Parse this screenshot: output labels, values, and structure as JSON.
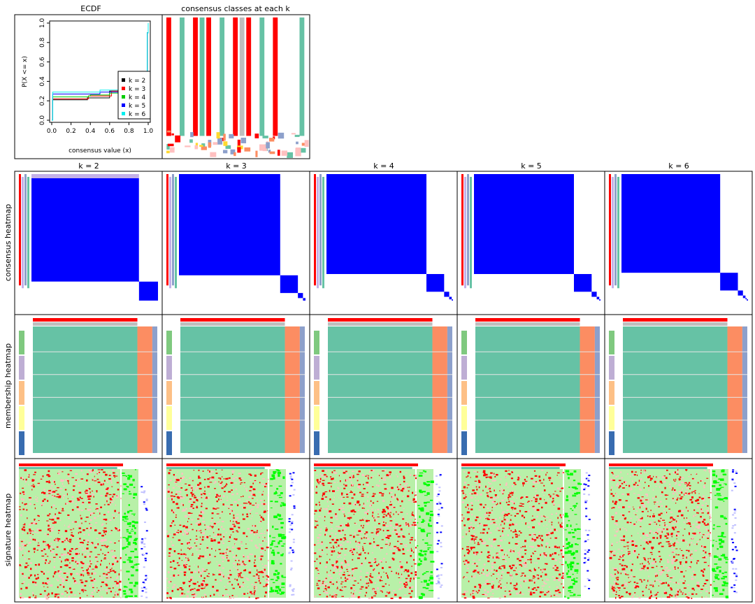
{
  "titles": {
    "ecdf": "ECDF",
    "classes": "consensus classes at each k",
    "k2": "k = 2",
    "k3": "k = 3",
    "k4": "k = 4",
    "k5": "k = 5",
    "k6": "k = 6"
  },
  "row_labels": {
    "consensus": "consensus heatmap",
    "membership": "membership heatmap",
    "signature": "signature heatmap"
  },
  "colors": {
    "blue": "#0000ff",
    "red": "#ff0000",
    "teal": "#66c2a5",
    "salmon": "#fc8d62",
    "grey": "#bebebe",
    "purple": "#8da0cb",
    "lavender": "#c3b0e8",
    "green": "#00ff00",
    "lightgreen": "#b8f0a8",
    "pink": "#ffc0c0",
    "anno_green": "#7fc97f",
    "anno_lavender": "#beaed4",
    "anno_orange": "#fdc086",
    "anno_yellow": "#ffff99",
    "anno_blue": "#386cb0"
  },
  "chart_data": [
    {
      "type": "line",
      "title": "ECDF",
      "xlabel": "consensus value (x)",
      "ylabel": "P(X <= x)",
      "xlim": [
        0,
        1
      ],
      "ylim": [
        0,
        1
      ],
      "x_ticks": [
        "0.0",
        "0.2",
        "0.4",
        "0.6",
        "0.8",
        "1.0"
      ],
      "y_ticks": [
        "0.0",
        "0.2",
        "0.4",
        "0.6",
        "0.8",
        "1.0"
      ],
      "legend_position": "bottom-right",
      "series": [
        {
          "name": "k = 2",
          "color": "#000000",
          "x": [
            0,
            0.01,
            0.35,
            0.37,
            0.58,
            0.6,
            0.98,
            0.99,
            1.0
          ],
          "y": [
            0,
            0.21,
            0.21,
            0.23,
            0.23,
            0.3,
            0.3,
            0.9,
            1.0
          ]
        },
        {
          "name": "k = 3",
          "color": "#ff0000",
          "x": [
            0,
            0.01,
            0.35,
            0.38,
            0.6,
            0.62,
            0.98,
            0.99,
            1.0
          ],
          "y": [
            0,
            0.22,
            0.22,
            0.25,
            0.25,
            0.3,
            0.3,
            0.9,
            1.0
          ]
        },
        {
          "name": "k = 4",
          "color": "#00cd00",
          "x": [
            0,
            0.01,
            0.38,
            0.4,
            0.6,
            0.98,
            0.99,
            1.0
          ],
          "y": [
            0,
            0.24,
            0.25,
            0.26,
            0.28,
            0.3,
            0.9,
            1.0
          ]
        },
        {
          "name": "k = 5",
          "color": "#0000ff",
          "x": [
            0,
            0.01,
            0.5,
            0.98,
            0.99,
            1.0
          ],
          "y": [
            0,
            0.27,
            0.29,
            0.31,
            0.9,
            1.0
          ]
        },
        {
          "name": "k = 6",
          "color": "#00eeee",
          "x": [
            0,
            0.01,
            0.5,
            0.98,
            0.99,
            1.0
          ],
          "y": [
            0,
            0.29,
            0.31,
            0.33,
            0.9,
            1.0
          ]
        }
      ]
    },
    {
      "type": "heatmap",
      "title": "consensus classes at each k"
    },
    {
      "type": "heatmap",
      "title": "k = 2",
      "row": "consensus heatmap",
      "cluster_fractions": [
        0.85,
        0.15
      ]
    },
    {
      "type": "heatmap",
      "title": "k = 3",
      "row": "consensus heatmap",
      "cluster_fractions": [
        0.8,
        0.14,
        0.04,
        0.02
      ]
    },
    {
      "type": "heatmap",
      "title": "k = 4",
      "row": "consensus heatmap",
      "cluster_fractions": [
        0.79,
        0.14,
        0.04,
        0.02,
        0.01
      ]
    },
    {
      "type": "heatmap",
      "title": "k = 5",
      "row": "consensus heatmap",
      "cluster_fractions": [
        0.79,
        0.14,
        0.04,
        0.02,
        0.01
      ]
    },
    {
      "type": "heatmap",
      "title": "k = 6",
      "row": "consensus heatmap",
      "cluster_fractions": [
        0.78,
        0.14,
        0.04,
        0.02,
        0.01,
        0.01
      ]
    }
  ]
}
